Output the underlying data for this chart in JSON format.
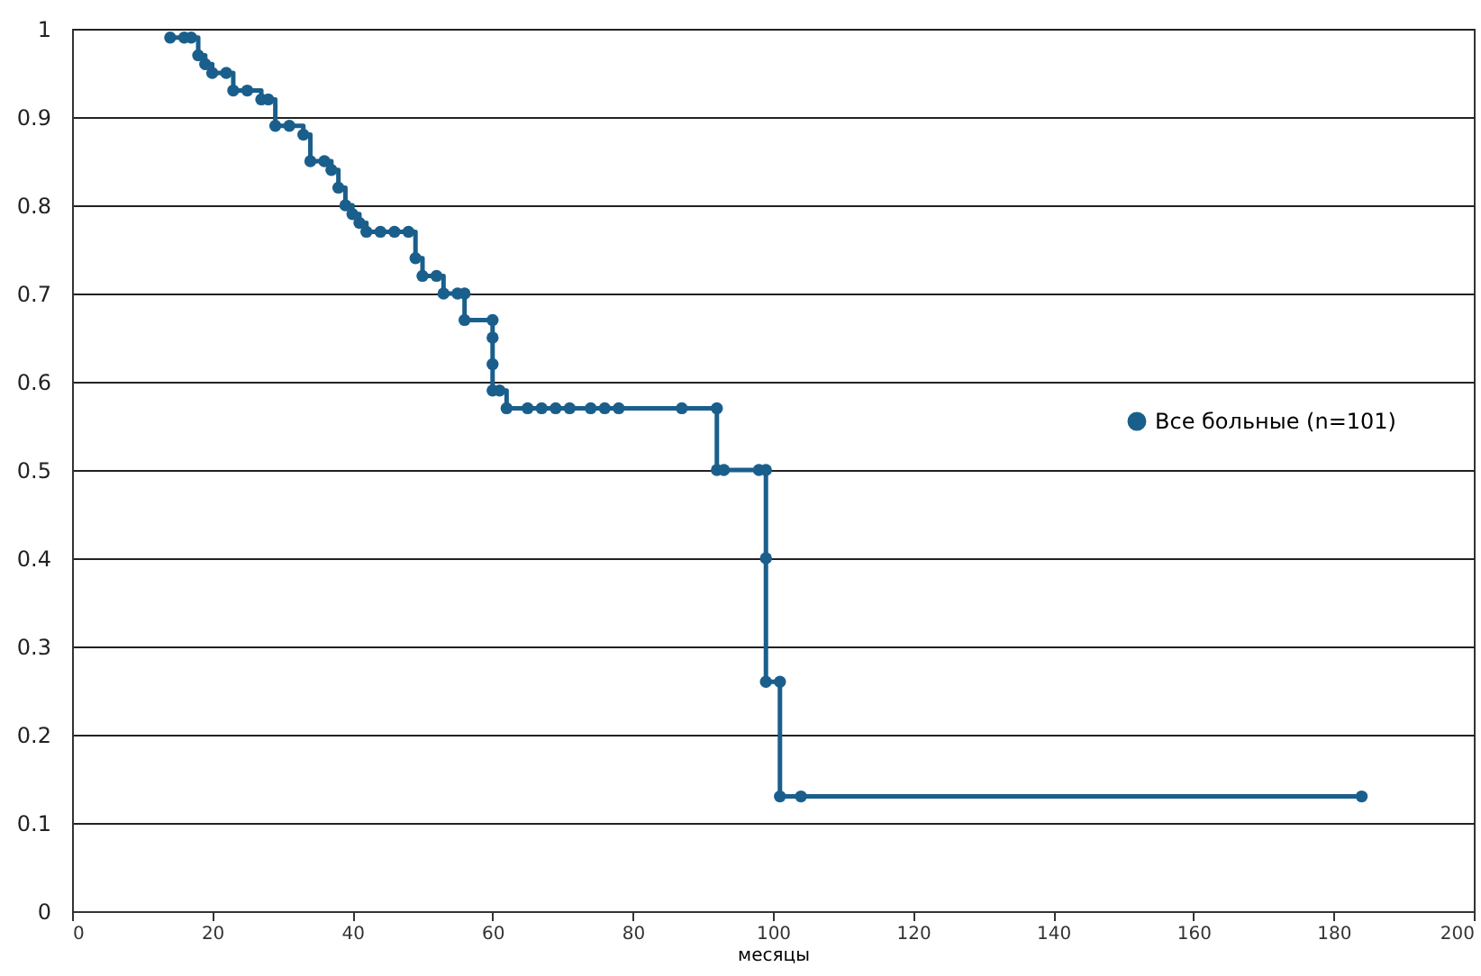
{
  "chart_data": {
    "type": "step",
    "xlabel": "месяцы",
    "series": [
      {
        "name": "Все больные (n=101)",
        "color": "#1a5f8c",
        "x": [
          14,
          16,
          17,
          18,
          19,
          20,
          22,
          23,
          25,
          27,
          28,
          29,
          31,
          33,
          34,
          36,
          37,
          38,
          39,
          40,
          41,
          42,
          44,
          46,
          48,
          49,
          50,
          52,
          53,
          55,
          56,
          56,
          60,
          60,
          60,
          60,
          61,
          62,
          65,
          67,
          69,
          71,
          74,
          76,
          78,
          87,
          92,
          92,
          93,
          98,
          99,
          99,
          99,
          101,
          101,
          104,
          184
        ],
        "values": [
          0.99,
          0.99,
          0.99,
          0.97,
          0.96,
          0.95,
          0.95,
          0.93,
          0.93,
          0.92,
          0.92,
          0.89,
          0.89,
          0.88,
          0.85,
          0.85,
          0.84,
          0.82,
          0.8,
          0.79,
          0.78,
          0.77,
          0.77,
          0.77,
          0.77,
          0.74,
          0.72,
          0.72,
          0.7,
          0.7,
          0.7,
          0.67,
          0.67,
          0.65,
          0.62,
          0.59,
          0.59,
          0.57,
          0.57,
          0.57,
          0.57,
          0.57,
          0.57,
          0.57,
          0.57,
          0.57,
          0.57,
          0.5,
          0.5,
          0.5,
          0.5,
          0.4,
          0.26,
          0.26,
          0.13,
          0.13,
          0.13
        ]
      }
    ],
    "xlim": [
      0,
      200
    ],
    "xticks": [
      0,
      20,
      40,
      60,
      80,
      100,
      120,
      140,
      160,
      180,
      200
    ],
    "ylim": [
      0,
      1
    ],
    "yticks": [
      0,
      0.1,
      0.2,
      0.3,
      0.4,
      0.5,
      0.6,
      0.7,
      0.8,
      0.9,
      1
    ],
    "grid": "y",
    "legend": "right",
    "marker": "circle",
    "line_style": "solid"
  }
}
